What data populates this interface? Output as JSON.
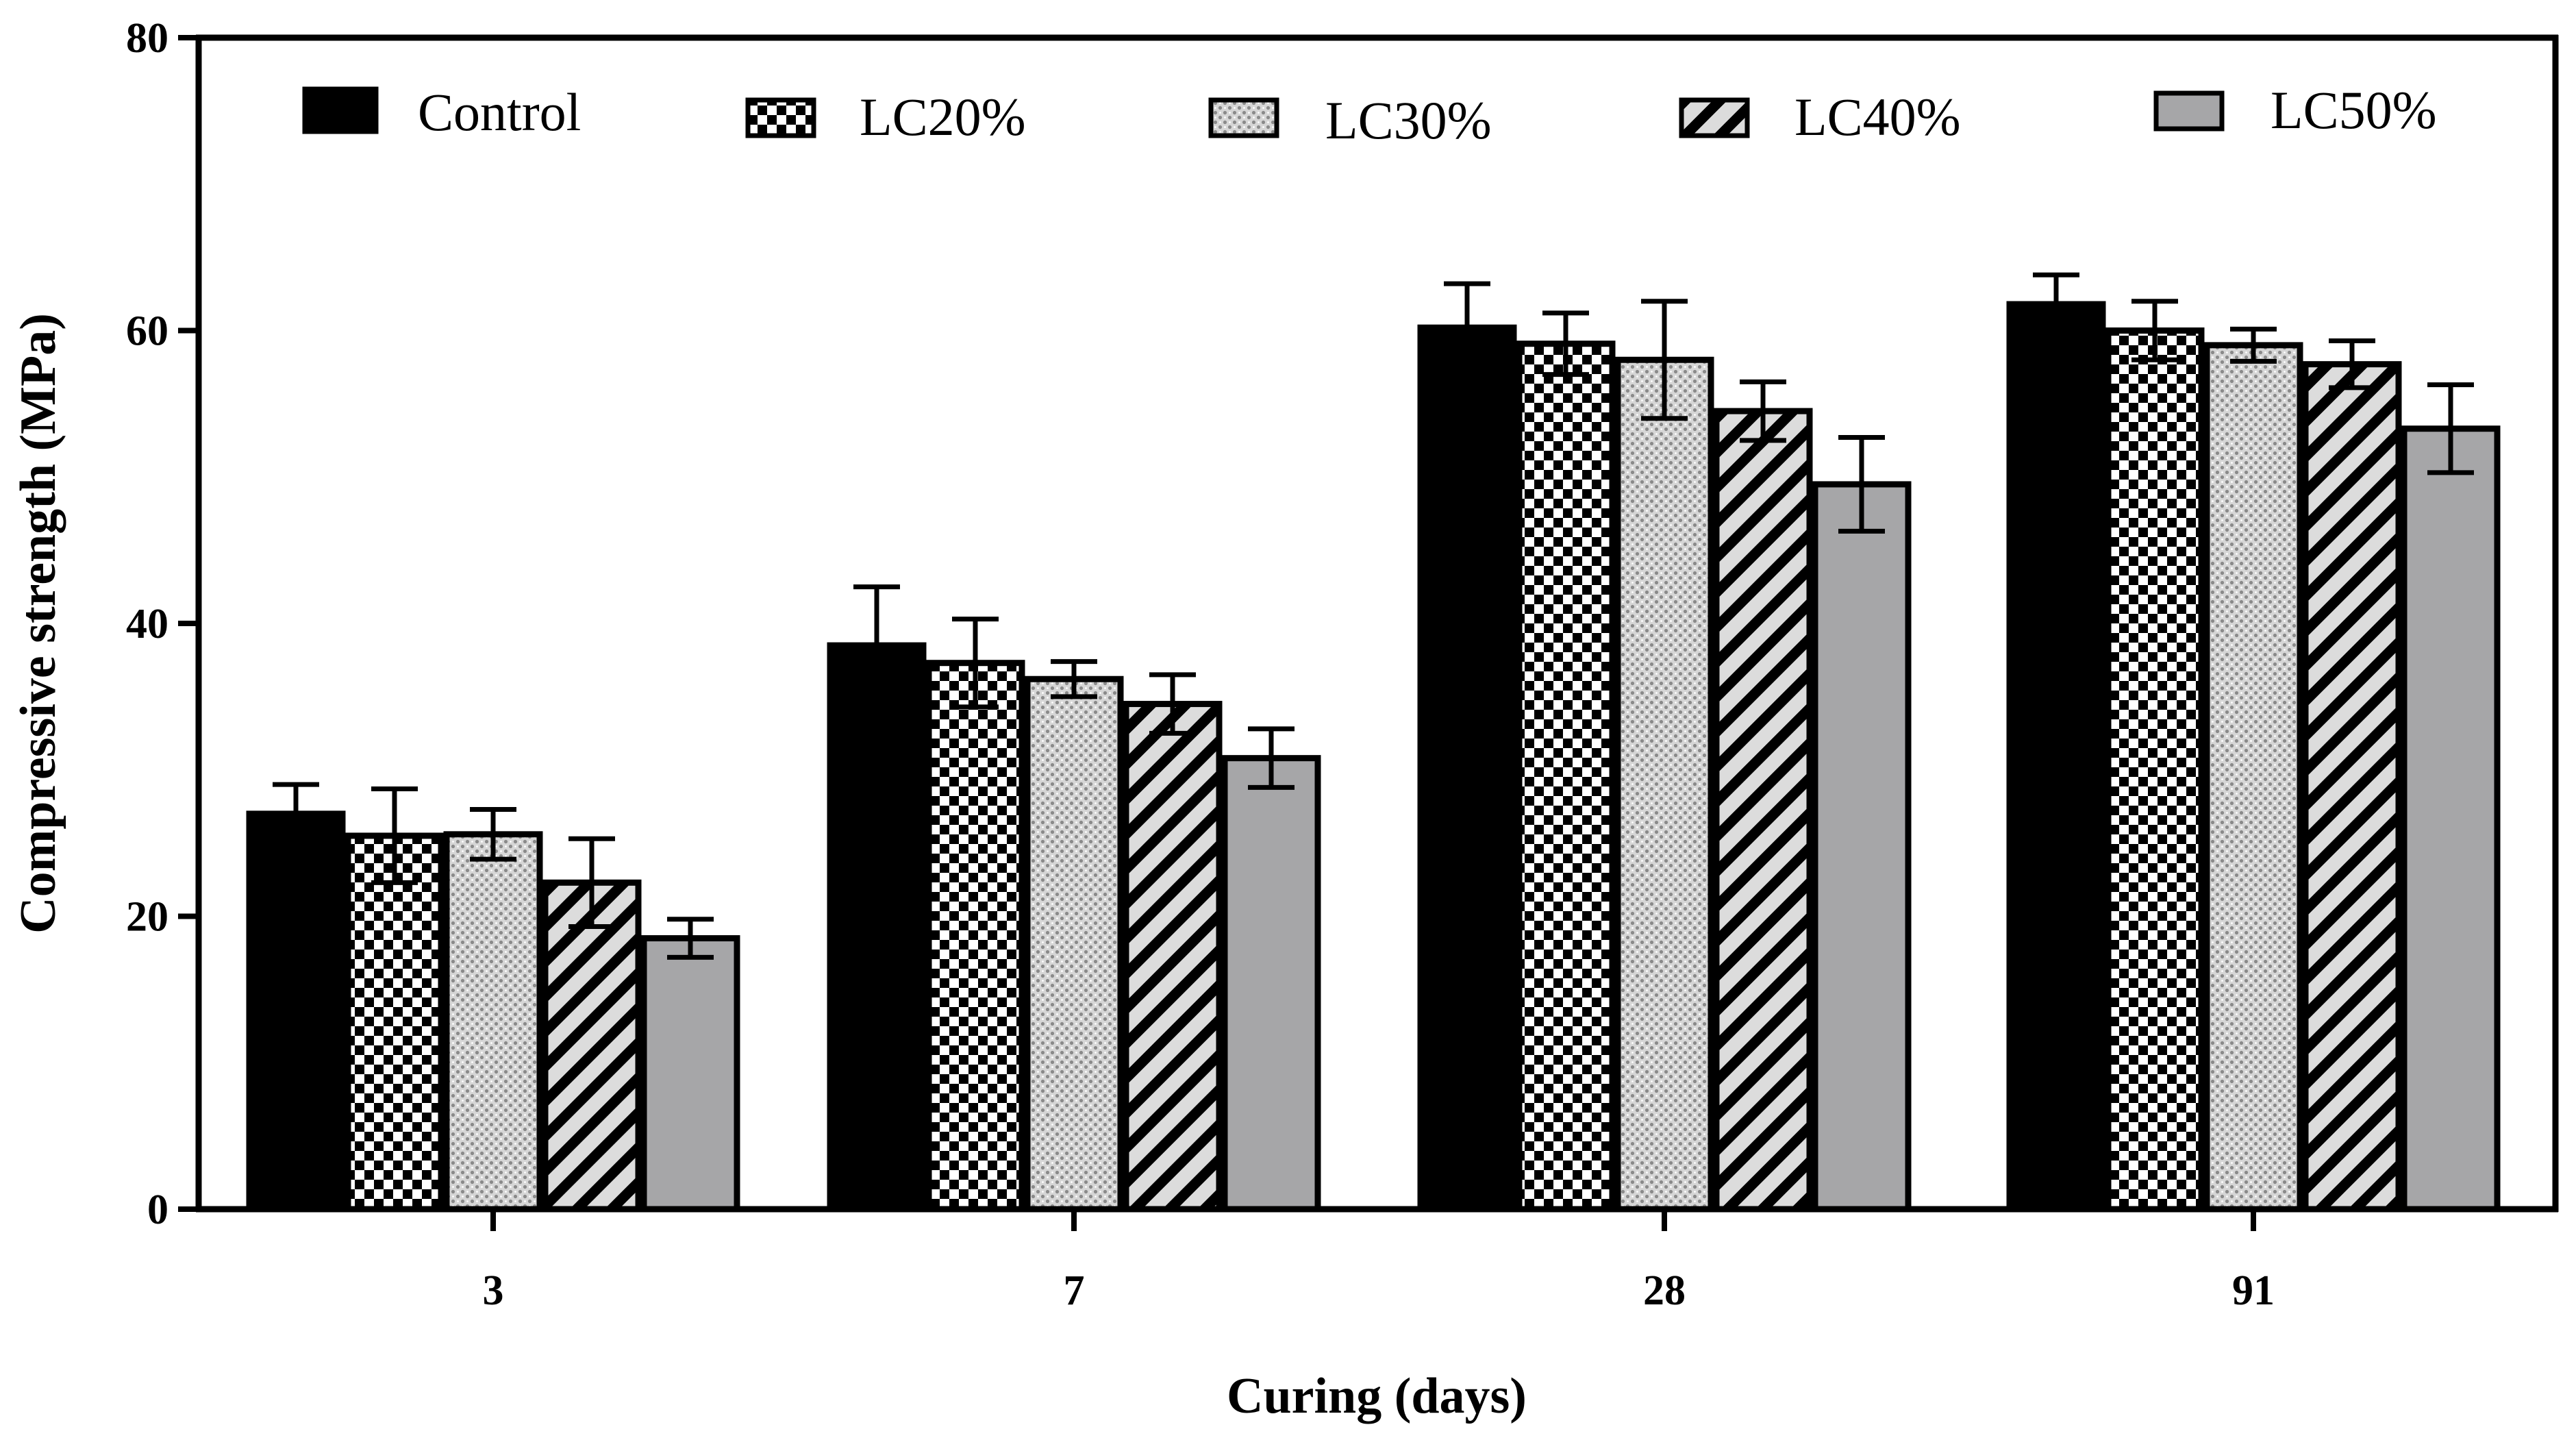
{
  "chart_data": {
    "type": "bar",
    "title": "",
    "xlabel": "Curing (days)",
    "ylabel": "Compressive strength (MPa)",
    "ylim": [
      0,
      80
    ],
    "yticks": [
      0,
      20,
      40,
      60,
      80
    ],
    "grid": false,
    "legend_position": "top",
    "categories": [
      "3",
      "7",
      "28",
      "91"
    ],
    "series": [
      {
        "name": "Control",
        "pattern": "solid",
        "color": "#000000",
        "values": [
          27.0,
          38.5,
          60.2,
          61.8
        ],
        "errors": [
          2.0,
          4.0,
          3.0,
          2.0
        ]
      },
      {
        "name": "LC20%",
        "pattern": "checker",
        "color": "#000000",
        "values": [
          25.5,
          37.3,
          59.1,
          60.0
        ],
        "errors": [
          3.2,
          3.0,
          2.1,
          2.0
        ]
      },
      {
        "name": "LC30%",
        "pattern": "dots",
        "color": "#d4d4d4",
        "values": [
          25.6,
          36.2,
          58.0,
          59.0
        ],
        "errors": [
          1.7,
          1.2,
          4.0,
          1.1
        ]
      },
      {
        "name": "LC40%",
        "pattern": "diagonal",
        "color": "#000000",
        "values": [
          22.3,
          34.5,
          54.5,
          57.7
        ],
        "errors": [
          3.0,
          2.0,
          2.0,
          1.6
        ]
      },
      {
        "name": "LC50%",
        "pattern": "solid",
        "color": "#a6a6a8",
        "values": [
          18.5,
          30.8,
          49.5,
          53.3
        ],
        "errors": [
          1.3,
          2.0,
          3.2,
          3.0
        ]
      }
    ]
  }
}
